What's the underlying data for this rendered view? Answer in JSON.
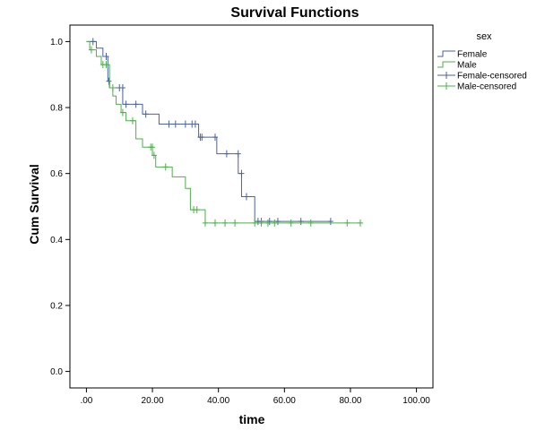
{
  "chart_data": {
    "type": "line",
    "title": "Survival Functions",
    "xlabel": "time",
    "ylabel": "Cum Survival",
    "xlim": [
      -5,
      105
    ],
    "ylim": [
      -0.05,
      1.05
    ],
    "x_ticks": [
      ".00",
      "20.00",
      "40.00",
      "60.00",
      "80.00",
      "100.00"
    ],
    "x_tick_values": [
      0,
      20,
      40,
      60,
      80,
      100
    ],
    "y_ticks": [
      "0.0",
      "0.2",
      "0.4",
      "0.6",
      "0.8",
      "1.0"
    ],
    "y_tick_values": [
      0,
      0.2,
      0.4,
      0.6,
      0.8,
      1.0
    ],
    "grid": false,
    "legend": {
      "title": "sex",
      "placement": "right",
      "entries": [
        "Female",
        "Male",
        "Female-censored",
        "Male-censored"
      ]
    },
    "series": [
      {
        "name": "Female",
        "color": "#4A62A6",
        "steps": [
          [
            0,
            1.0
          ],
          [
            3,
            0.98
          ],
          [
            5,
            0.955
          ],
          [
            6.5,
            0.88
          ],
          [
            7,
            0.86
          ],
          [
            11,
            0.81
          ],
          [
            17,
            0.78
          ],
          [
            22,
            0.75
          ],
          [
            34,
            0.71
          ],
          [
            39.5,
            0.66
          ],
          [
            46,
            0.6
          ],
          [
            47,
            0.53
          ],
          [
            51,
            0.455
          ],
          [
            74,
            0.455
          ]
        ],
        "censored": [
          [
            2,
            1.0
          ],
          [
            6,
            0.955
          ],
          [
            6.8,
            0.88
          ],
          [
            10,
            0.86
          ],
          [
            11,
            0.86
          ],
          [
            12,
            0.81
          ],
          [
            15,
            0.81
          ],
          [
            18,
            0.78
          ],
          [
            25,
            0.75
          ],
          [
            27,
            0.75
          ],
          [
            30,
            0.75
          ],
          [
            32,
            0.75
          ],
          [
            33,
            0.75
          ],
          [
            34.5,
            0.71
          ],
          [
            35,
            0.71
          ],
          [
            39,
            0.71
          ],
          [
            42.5,
            0.66
          ],
          [
            46,
            0.66
          ],
          [
            47,
            0.6
          ],
          [
            48.5,
            0.53
          ],
          [
            52,
            0.455
          ],
          [
            53,
            0.455
          ],
          [
            55.5,
            0.455
          ],
          [
            58,
            0.455
          ],
          [
            65,
            0.455
          ],
          [
            74,
            0.455
          ]
        ]
      },
      {
        "name": "Male",
        "color": "#4CB04A",
        "steps": [
          [
            0,
            1.0
          ],
          [
            1,
            0.975
          ],
          [
            3,
            0.955
          ],
          [
            4.5,
            0.93
          ],
          [
            7,
            0.86
          ],
          [
            8,
            0.835
          ],
          [
            9,
            0.81
          ],
          [
            10.5,
            0.785
          ],
          [
            12,
            0.76
          ],
          [
            15,
            0.705
          ],
          [
            17,
            0.68
          ],
          [
            20,
            0.655
          ],
          [
            21,
            0.62
          ],
          [
            26,
            0.59
          ],
          [
            30,
            0.555
          ],
          [
            31.5,
            0.49
          ],
          [
            36,
            0.45
          ],
          [
            83,
            0.45
          ]
        ],
        "censored": [
          [
            1.5,
            0.975
          ],
          [
            5,
            0.93
          ],
          [
            6,
            0.93
          ],
          [
            8,
            0.86
          ],
          [
            11,
            0.785
          ],
          [
            14,
            0.76
          ],
          [
            19.5,
            0.68
          ],
          [
            20,
            0.68
          ],
          [
            20.5,
            0.655
          ],
          [
            24,
            0.62
          ],
          [
            32.5,
            0.49
          ],
          [
            33.5,
            0.49
          ],
          [
            36,
            0.45
          ],
          [
            39,
            0.45
          ],
          [
            42,
            0.45
          ],
          [
            45,
            0.45
          ],
          [
            51,
            0.45
          ],
          [
            53,
            0.45
          ],
          [
            55,
            0.45
          ],
          [
            57,
            0.45
          ],
          [
            62,
            0.45
          ],
          [
            68,
            0.45
          ],
          [
            79,
            0.45
          ],
          [
            83,
            0.45
          ]
        ]
      }
    ]
  }
}
